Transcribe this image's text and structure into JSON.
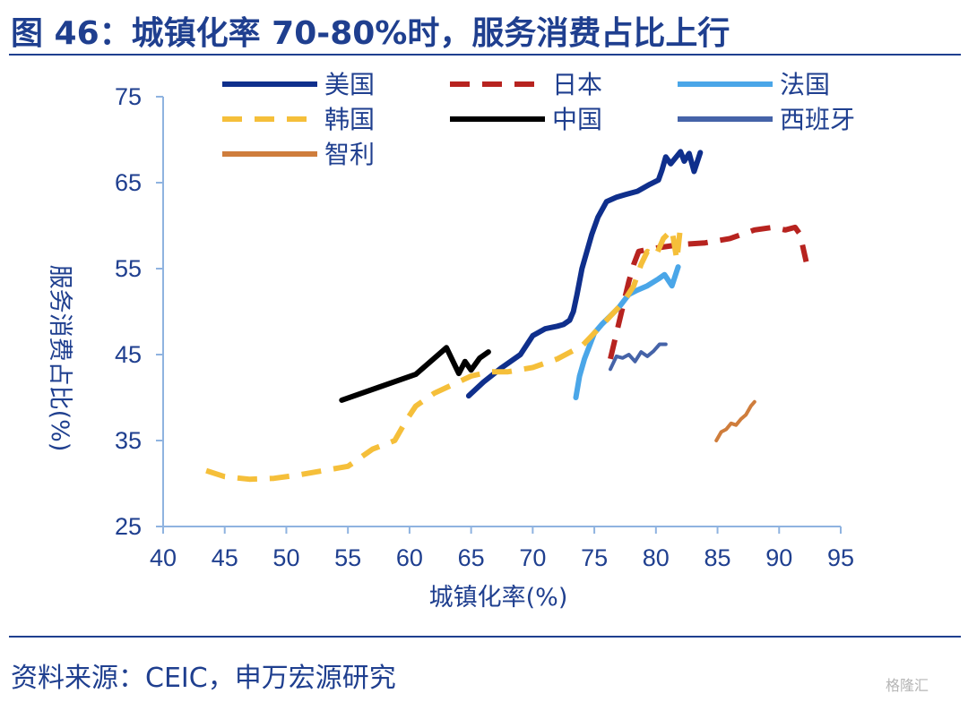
{
  "header": {
    "title": "图 46：城镇化率 70-80%时，服务消费占比上行"
  },
  "footer": {
    "source": "资料来源：CEIC，申万宏源研究",
    "watermark": "格隆汇"
  },
  "chart_data": {
    "type": "line",
    "title": "",
    "xlabel": "城镇化率(%)",
    "ylabel": "服务消费占比(%)",
    "xlim": [
      40,
      95
    ],
    "ylim": [
      25,
      75
    ],
    "xticks": [
      "40",
      "45",
      "50",
      "55",
      "60",
      "65",
      "70",
      "75",
      "80",
      "85",
      "90",
      "95"
    ],
    "yticks": [
      "25",
      "35",
      "45",
      "55",
      "65",
      "75"
    ],
    "grid": false,
    "legend": "top",
    "series": [
      {
        "name": "美国",
        "color": "#0f2f8c",
        "dash": "solid",
        "width": 6,
        "x": [
          64.8,
          66,
          67.5,
          69,
          70,
          71,
          72,
          72.5,
          73,
          73.3,
          73.6,
          74.0,
          74.4,
          74.8,
          75.3,
          76.0,
          76.8,
          77.5,
          78.5,
          79.5,
          80.2,
          80.5,
          80.8,
          81.2,
          82.0,
          82.3,
          82.7,
          83.1,
          83.6
        ],
        "y": [
          40.2,
          41.8,
          43.5,
          45.0,
          47.2,
          48.0,
          48.3,
          48.5,
          49.0,
          50.0,
          52.0,
          55.0,
          57.0,
          59.0,
          61.0,
          62.8,
          63.3,
          63.6,
          64.0,
          64.8,
          65.3,
          66.5,
          68.0,
          67.2,
          68.6,
          67.5,
          68.4,
          66.3,
          68.5
        ]
      },
      {
        "name": "日本",
        "color": "#b7231f",
        "dash": "dash",
        "width": 6,
        "x": [
          76.3,
          76.8,
          77.3,
          77.8,
          78.2,
          78.6,
          79.2,
          80.5,
          82,
          84,
          86,
          88,
          89.5,
          90.5,
          91.3,
          91.7,
          92.2
        ],
        "y": [
          44.5,
          47.5,
          50.5,
          53.5,
          55.5,
          57.0,
          57.2,
          57.5,
          57.8,
          58.0,
          58.5,
          59.5,
          59.8,
          59.5,
          59.8,
          59.0,
          55.8
        ]
      },
      {
        "name": "法国",
        "color": "#4aa6e8",
        "dash": "solid",
        "width": 6,
        "x": [
          73.5,
          73.8,
          74.2,
          74.6,
          75.0,
          75.6,
          76.3,
          77.0,
          77.8,
          78.5,
          79.3,
          80.2,
          80.7,
          81.3,
          81.8
        ],
        "y": [
          40.0,
          42.5,
          44.5,
          46.0,
          47.5,
          48.5,
          49.5,
          50.5,
          52.0,
          52.5,
          53.0,
          53.8,
          54.3,
          53.0,
          55.2
        ]
      },
      {
        "name": "韩国",
        "color": "#f5bf3a",
        "dash": "dash",
        "width": 6,
        "x": [
          43.5,
          45,
          47,
          49,
          51,
          53,
          55,
          57,
          58.8,
          59.8,
          60.5,
          62,
          63.5,
          65,
          66.5,
          68,
          70,
          72,
          74,
          76,
          77.3,
          78.2,
          78.8,
          79.3,
          80.0,
          80.6,
          81.3,
          81.7,
          82.0
        ],
        "y": [
          31.5,
          30.8,
          30.5,
          30.6,
          31.0,
          31.5,
          32.0,
          34.0,
          35.0,
          37.5,
          39.0,
          40.5,
          41.5,
          42.5,
          43.0,
          43.0,
          43.5,
          44.5,
          46.0,
          49.0,
          51.0,
          53.0,
          55.5,
          57.0,
          56.5,
          58.5,
          59.5,
          56.0,
          60.0
        ]
      },
      {
        "name": "中国",
        "color": "#000000",
        "dash": "solid",
        "width": 6,
        "x": [
          54.5,
          57.5,
          60.5,
          63.0,
          64.0,
          64.5,
          65.0,
          65.7,
          66.4
        ],
        "y": [
          39.7,
          41.2,
          42.7,
          45.8,
          42.8,
          44.2,
          43.2,
          44.6,
          45.3
        ]
      },
      {
        "name": "西班牙",
        "color": "#4563a8",
        "dash": "solid",
        "width": 4,
        "x": [
          76.3,
          76.8,
          77.3,
          77.8,
          78.3,
          78.8,
          79.3,
          79.8,
          80.3,
          80.8
        ],
        "y": [
          43.3,
          44.8,
          44.6,
          45.0,
          44.2,
          45.3,
          44.8,
          45.4,
          46.2,
          46.2
        ]
      },
      {
        "name": "智利",
        "color": "#cf7d3c",
        "dash": "solid",
        "width": 4,
        "x": [
          84.9,
          85.3,
          85.7,
          86.1,
          86.5,
          86.9,
          87.3,
          87.7,
          88.0
        ],
        "y": [
          35.0,
          36.0,
          36.3,
          37.0,
          36.8,
          37.5,
          38.0,
          39.0,
          39.5
        ]
      }
    ]
  }
}
